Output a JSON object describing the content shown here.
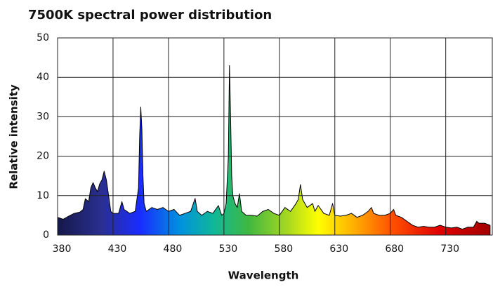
{
  "chart_data": {
    "type": "area",
    "title": "7500K spectral power distribution",
    "x_label": "Wavelength",
    "y_label": "Relative intensity",
    "xlim": [
      380,
      772
    ],
    "ylim": [
      0,
      50
    ],
    "xticks": [
      380,
      430,
      480,
      530,
      580,
      630,
      680,
      730
    ],
    "yticks": [
      0,
      10,
      20,
      30,
      40,
      50
    ],
    "grid": true,
    "x": [
      380,
      385,
      390,
      395,
      400,
      403,
      405,
      408,
      410,
      412,
      414,
      416,
      418,
      420,
      422,
      424,
      426,
      428,
      430,
      435,
      438,
      440,
      445,
      450,
      453,
      454,
      455,
      456,
      457,
      458,
      460,
      465,
      470,
      475,
      480,
      485,
      490,
      495,
      500,
      504,
      506,
      510,
      515,
      520,
      525,
      528,
      530,
      532,
      534,
      535,
      536,
      537,
      538,
      540,
      542,
      544,
      546,
      550,
      555,
      560,
      565,
      570,
      575,
      580,
      585,
      590,
      595,
      597,
      599,
      601,
      605,
      610,
      612,
      615,
      620,
      625,
      628,
      630,
      635,
      640,
      645,
      650,
      655,
      660,
      663,
      665,
      670,
      675,
      680,
      683,
      685,
      690,
      695,
      700,
      705,
      710,
      715,
      720,
      725,
      730,
      735,
      740,
      745,
      750,
      755,
      758,
      760,
      765,
      770
    ],
    "values": [
      4.5,
      4,
      4.8,
      5.5,
      5.8,
      6.5,
      9.2,
      8.5,
      12,
      13.3,
      12,
      11,
      13,
      14,
      16.2,
      14,
      10,
      6,
      5.5,
      5.5,
      8.5,
      6.5,
      5.5,
      6,
      12,
      25,
      32.5,
      27,
      15,
      8,
      6,
      7,
      6.5,
      7,
      6,
      6.5,
      5,
      5.5,
      6,
      9.3,
      6,
      5,
      6,
      5.5,
      7.5,
      5,
      5.5,
      8,
      20,
      43,
      30,
      15,
      10,
      8,
      7,
      10.5,
      6,
      5,
      5,
      4.8,
      6,
      6.5,
      5.5,
      5,
      7,
      6,
      8,
      9,
      12.8,
      9,
      7,
      8,
      6,
      7.5,
      5.5,
      5,
      8,
      5,
      4.8,
      5,
      5.5,
      4.5,
      5,
      6,
      7,
      5.5,
      5,
      5,
      5.5,
      6.5,
      5,
      4.5,
      3.5,
      2.5,
      2,
      2.2,
      2,
      2,
      2.5,
      2,
      1.8,
      2,
      1.5,
      2,
      2,
      3.5,
      3,
      3,
      2.5
    ]
  }
}
